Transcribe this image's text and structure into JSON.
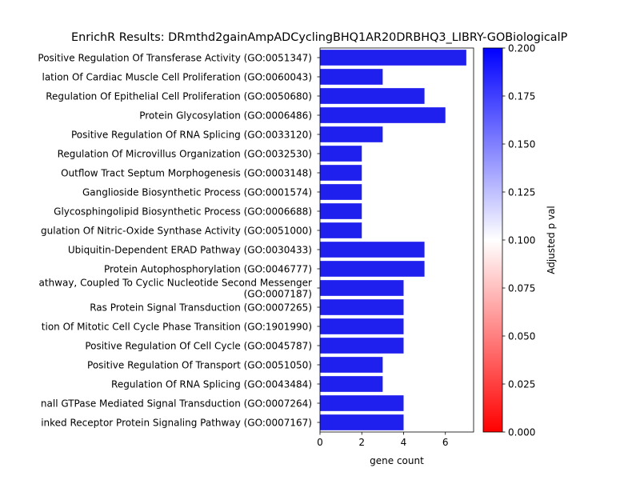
{
  "chart_data": {
    "type": "bar",
    "orientation": "horizontal",
    "title": "EnrichR Results: DRmthd2gainAmpADCyclingBHQ1AR20DRBHQ3_LIBRY-GOBiologicalP",
    "xlabel": "gene count",
    "ylabel": "",
    "xlim": [
      0,
      7.35
    ],
    "x_ticks": [
      "0",
      "2",
      "4",
      "6"
    ],
    "bar_color": "#1f1fee",
    "categories": [
      "Positive Regulation Of Transferase Activity (GO:0051347)",
      "lation Of Cardiac Muscle Cell Proliferation (GO:0060043)",
      "Regulation Of Epithelial Cell Proliferation (GO:0050680)",
      "Protein Glycosylation (GO:0006486)",
      "Positive Regulation Of RNA Splicing (GO:0033120)",
      "Regulation Of Microvillus Organization (GO:0032530)",
      "Outflow Tract Septum Morphogenesis (GO:0003148)",
      "Ganglioside Biosynthetic Process (GO:0001574)",
      "Glycosphingolipid Biosynthetic Process (GO:0006688)",
      "gulation Of Nitric-Oxide Synthase Activity (GO:0051000)",
      "Ubiquitin-Dependent ERAD Pathway (GO:0030433)",
      "Protein Autophosphorylation (GO:0046777)",
      "athway, Coupled To Cyclic Nucleotide Second Messenger\n(GO:0007187)",
      "Ras Protein Signal Transduction (GO:0007265)",
      "tion Of Mitotic Cell Cycle Phase Transition (GO:1901990)",
      "Positive Regulation Of Cell Cycle (GO:0045787)",
      "Positive Regulation Of Transport (GO:0051050)",
      "Regulation Of RNA Splicing (GO:0043484)",
      "nall GTPase Mediated Signal Transduction (GO:0007264)",
      "inked Receptor Protein Signaling Pathway (GO:0007167)"
    ],
    "values": [
      7,
      3,
      5,
      6,
      3,
      2,
      2,
      2,
      2,
      2,
      5,
      5,
      4,
      4,
      4,
      4,
      3,
      3,
      4,
      4
    ],
    "colorbar": {
      "label": "Adjusted p val",
      "range": [
        0,
        0.2
      ],
      "ticks": [
        "0.000",
        "0.025",
        "0.050",
        "0.075",
        "0.100",
        "0.125",
        "0.150",
        "0.175",
        "0.200"
      ],
      "colors": [
        "#ff0000",
        "#ffffff",
        "#0000ff"
      ]
    }
  }
}
